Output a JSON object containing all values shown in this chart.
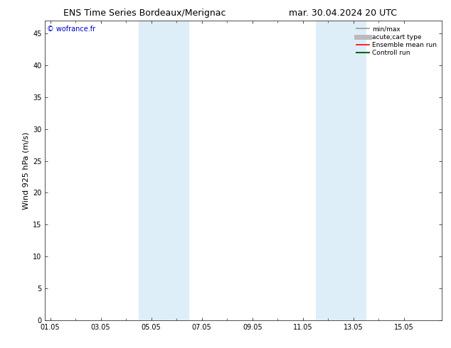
{
  "title_left": "ENS Time Series Bordeaux/Merignac",
  "title_right": "mar. 30.04.2024 20 UTC",
  "ylabel": "Wind 925 hPa (m/s)",
  "watermark": "© wofrance.fr",
  "xtick_labels": [
    "01.05",
    "03.05",
    "05.05",
    "07.05",
    "09.05",
    "11.05",
    "13.05",
    "15.05"
  ],
  "xtick_positions": [
    0,
    2,
    4,
    6,
    8,
    10,
    12,
    14
  ],
  "xlim": [
    -0.2,
    15.5
  ],
  "ylim": [
    0,
    47
  ],
  "ytick_positions": [
    0,
    5,
    10,
    15,
    20,
    25,
    30,
    35,
    40,
    45
  ],
  "ytick_labels": [
    "0",
    "5",
    "10",
    "15",
    "20",
    "25",
    "30",
    "35",
    "40",
    "45"
  ],
  "shaded_bands": [
    {
      "x_start": 3.5,
      "x_end": 5.5
    },
    {
      "x_start": 10.5,
      "x_end": 12.5
    }
  ],
  "shaded_color": "#ddeef9",
  "background_color": "#ffffff",
  "legend_entries": [
    {
      "label": "min/max",
      "color": "#999999",
      "linewidth": 1.2
    },
    {
      "label": "acute;cart type",
      "color": "#bbbbbb",
      "linewidth": 5
    },
    {
      "label": "Ensemble mean run",
      "color": "#ff0000",
      "linewidth": 1.2
    },
    {
      "label": "Controll run",
      "color": "#006600",
      "linewidth": 1.5
    }
  ],
  "title_fontsize": 9,
  "tick_fontsize": 7,
  "ylabel_fontsize": 8,
  "watermark_fontsize": 7,
  "legend_fontsize": 6.5,
  "watermark_color": "#0000cc"
}
